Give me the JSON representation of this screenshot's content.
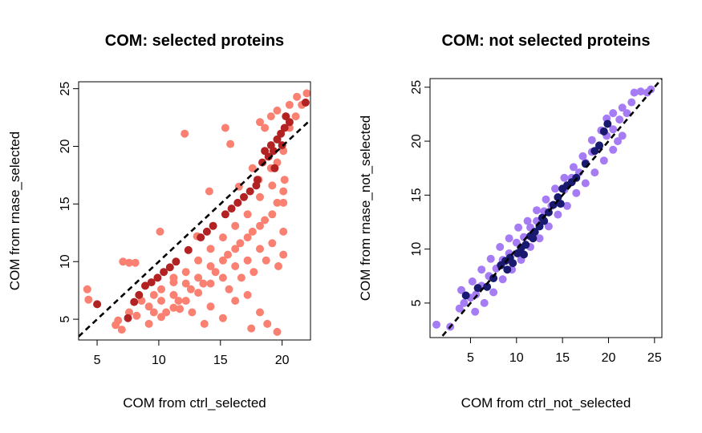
{
  "chart_data": [
    {
      "type": "scatter",
      "title": "COM: selected proteins",
      "xlabel": "COM from ctrl_selected",
      "ylabel": "COM from rnase_selected",
      "xlim": [
        3.5,
        22.3
      ],
      "ylim": [
        3.2,
        25.6
      ],
      "xticks": [
        5,
        10,
        15,
        20
      ],
      "yticks": [
        5,
        10,
        15,
        20,
        25
      ],
      "grid": false,
      "legend": "none",
      "reference_line": {
        "slope": 1,
        "intercept": 0,
        "style": "dashed",
        "color": "#000000"
      },
      "series": [
        {
          "color": "#FA8072",
          "points": [
            [
              4.2,
              7.6
            ],
            [
              4.3,
              6.7
            ],
            [
              7.1,
              10.0
            ],
            [
              7.6,
              9.9
            ],
            [
              8.1,
              9.9
            ],
            [
              10.1,
              12.6
            ],
            [
              12.1,
              21.1
            ],
            [
              13.1,
              12.2
            ],
            [
              14.1,
              16.1
            ],
            [
              15.4,
              21.6
            ],
            [
              18.2,
              22.1
            ],
            [
              19.6,
              20.6
            ],
            [
              16.5,
              16.5
            ],
            [
              15.8,
              20.2
            ],
            [
              11.2,
              8.2
            ],
            [
              6.5,
              4.5
            ],
            [
              7.0,
              4.1
            ],
            [
              8.2,
              5.3
            ],
            [
              9.2,
              4.6
            ],
            [
              10.2,
              5.2
            ],
            [
              11.2,
              6.0
            ],
            [
              12.2,
              6.6
            ],
            [
              13.2,
              7.3
            ],
            [
              14.2,
              8.1
            ],
            [
              15.2,
              8.6
            ],
            [
              16.2,
              9.6
            ],
            [
              17.2,
              10.1
            ],
            [
              18.2,
              11.1
            ],
            [
              19.2,
              11.6
            ],
            [
              20.1,
              12.6
            ],
            [
              9.2,
              6.1
            ],
            [
              10.2,
              6.6
            ],
            [
              11.2,
              7.1
            ],
            [
              12.2,
              8.1
            ],
            [
              13.2,
              8.6
            ],
            [
              14.2,
              9.6
            ],
            [
              15.2,
              10.1
            ],
            [
              16.2,
              11.1
            ],
            [
              17.2,
              12.1
            ],
            [
              18.2,
              13.1
            ],
            [
              19.2,
              14.1
            ],
            [
              20.1,
              15.1
            ],
            [
              16.2,
              6.6
            ],
            [
              17.2,
              7.1
            ],
            [
              18.2,
              5.6
            ],
            [
              18.8,
              4.6
            ],
            [
              17.5,
              4.2
            ],
            [
              19.6,
              3.9
            ],
            [
              15.2,
              5.1
            ],
            [
              14.2,
              6.1
            ],
            [
              12.7,
              5.6
            ],
            [
              11.7,
              5.9
            ],
            [
              13.7,
              4.6
            ],
            [
              15.7,
              7.6
            ],
            [
              16.7,
              8.6
            ],
            [
              17.7,
              9.1
            ],
            [
              18.7,
              10.1
            ],
            [
              19.7,
              9.6
            ],
            [
              20.1,
              10.6
            ],
            [
              18.2,
              15.6
            ],
            [
              19.2,
              16.6
            ],
            [
              20.2,
              17.1
            ],
            [
              17.2,
              14.1
            ],
            [
              16.2,
              13.1
            ],
            [
              15.2,
              12.1
            ],
            [
              14.2,
              11.1
            ],
            [
              13.2,
              10.1
            ],
            [
              12.2,
              9.1
            ],
            [
              11.2,
              8.6
            ],
            [
              10.2,
              7.6
            ],
            [
              9.6,
              7.1
            ],
            [
              8.6,
              6.6
            ],
            [
              7.6,
              5.6
            ],
            [
              6.7,
              4.9
            ],
            [
              19.6,
              18.6
            ],
            [
              20.1,
              19.6
            ],
            [
              20.6,
              21.6
            ],
            [
              21.1,
              22.6
            ],
            [
              21.6,
              23.6
            ],
            [
              22.0,
              24.6
            ],
            [
              21.2,
              24.3
            ],
            [
              20.6,
              23.6
            ],
            [
              19.6,
              23.1
            ],
            [
              19.1,
              22.6
            ],
            [
              18.6,
              21.6
            ],
            [
              17.6,
              18.1
            ],
            [
              18.1,
              17.1
            ],
            [
              19.1,
              18.1
            ],
            [
              20.1,
              16.1
            ],
            [
              19.6,
              15.1
            ],
            [
              18.6,
              13.6
            ],
            [
              17.6,
              12.6
            ],
            [
              16.6,
              11.6
            ],
            [
              15.6,
              10.6
            ],
            [
              14.6,
              9.1
            ],
            [
              13.6,
              8.1
            ],
            [
              12.6,
              7.6
            ],
            [
              11.6,
              6.6
            ],
            [
              10.6,
              5.6
            ],
            [
              9.6,
              5.6
            ]
          ]
        },
        {
          "color": "#B22222",
          "points": [
            [
              5.0,
              6.3
            ],
            [
              7.5,
              5.1
            ],
            [
              8.0,
              6.5
            ],
            [
              8.4,
              7.1
            ],
            [
              8.9,
              7.9
            ],
            [
              9.4,
              8.2
            ],
            [
              9.9,
              8.6
            ],
            [
              10.4,
              9.1
            ],
            [
              10.9,
              9.5
            ],
            [
              11.4,
              10.0
            ],
            [
              12.4,
              11.0
            ],
            [
              13.4,
              12.1
            ],
            [
              14.4,
              13.1
            ],
            [
              15.4,
              14.1
            ],
            [
              16.4,
              15.1
            ],
            [
              17.4,
              16.1
            ],
            [
              18.0,
              17.1
            ],
            [
              18.4,
              18.6
            ],
            [
              18.9,
              19.1
            ],
            [
              19.3,
              19.6
            ],
            [
              19.6,
              20.6
            ],
            [
              19.9,
              21.1
            ],
            [
              20.2,
              21.6
            ],
            [
              20.6,
              22.1
            ],
            [
              19.1,
              20.1
            ],
            [
              18.6,
              19.6
            ],
            [
              19.4,
              18.1
            ],
            [
              20.0,
              20.1
            ],
            [
              20.3,
              22.6
            ],
            [
              21.9,
              23.8
            ],
            [
              15.9,
              14.6
            ],
            [
              16.9,
              15.6
            ],
            [
              17.9,
              16.6
            ],
            [
              13.9,
              12.6
            ]
          ]
        }
      ]
    },
    {
      "type": "scatter",
      "title": "COM: not selected proteins",
      "xlabel": "COM from ctrl_not_selected",
      "ylabel": "COM from rnase_not_selected",
      "xlim": [
        0.6,
        25.8
      ],
      "ylim": [
        1.8,
        25.8
      ],
      "xticks": [
        5,
        10,
        15,
        20,
        25
      ],
      "yticks": [
        5,
        10,
        15,
        20,
        25
      ],
      "grid": false,
      "legend": "none",
      "reference_line": {
        "slope": 1,
        "intercept": 0,
        "style": "dashed",
        "color": "#000000"
      },
      "series": [
        {
          "color": "#A67CF5",
          "points": [
            [
              1.3,
              3.0
            ],
            [
              2.8,
              2.8
            ],
            [
              3.8,
              4.5
            ],
            [
              4.3,
              5.0
            ],
            [
              5.0,
              5.5
            ],
            [
              5.6,
              5.8
            ],
            [
              6.2,
              6.6
            ],
            [
              7.0,
              7.5
            ],
            [
              7.8,
              8.2
            ],
            [
              8.5,
              9.0
            ],
            [
              9.2,
              9.6
            ],
            [
              10.0,
              10.6
            ],
            [
              10.8,
              11.1
            ],
            [
              11.5,
              12.0
            ],
            [
              12.2,
              12.6
            ],
            [
              13.0,
              13.5
            ],
            [
              13.8,
              14.0
            ],
            [
              14.5,
              14.8
            ],
            [
              15.2,
              15.5
            ],
            [
              16.0,
              16.6
            ],
            [
              16.8,
              17.1
            ],
            [
              17.5,
              18.0
            ],
            [
              18.2,
              19.0
            ],
            [
              19.0,
              19.5
            ],
            [
              19.8,
              20.5
            ],
            [
              20.5,
              21.1
            ],
            [
              21.2,
              22.0
            ],
            [
              22.0,
              22.6
            ],
            [
              22.8,
              24.5
            ],
            [
              23.5,
              24.6
            ],
            [
              24.2,
              24.5
            ],
            [
              24.6,
              24.8
            ],
            [
              5.5,
              4.2
            ],
            [
              6.5,
              5.0
            ],
            [
              7.5,
              6.0
            ],
            [
              8.5,
              7.2
            ],
            [
              9.5,
              8.1
            ],
            [
              10.5,
              9.0
            ],
            [
              11.5,
              10.2
            ],
            [
              12.5,
              11.0
            ],
            [
              13.5,
              12.1
            ],
            [
              14.5,
              13.2
            ],
            [
              15.5,
              14.0
            ],
            [
              16.5,
              15.2
            ],
            [
              17.5,
              16.1
            ],
            [
              18.5,
              17.1
            ],
            [
              19.5,
              18.2
            ],
            [
              20.5,
              19.2
            ],
            [
              21.0,
              20.0
            ],
            [
              21.5,
              20.5
            ],
            [
              4.0,
              6.2
            ],
            [
              5.2,
              7.0
            ],
            [
              6.2,
              8.1
            ],
            [
              7.2,
              9.1
            ],
            [
              8.2,
              10.2
            ],
            [
              9.2,
              11.0
            ],
            [
              10.2,
              12.0
            ],
            [
              11.2,
              12.6
            ],
            [
              12.2,
              13.6
            ],
            [
              13.2,
              14.6
            ],
            [
              14.2,
              15.6
            ],
            [
              15.2,
              16.6
            ],
            [
              16.2,
              17.6
            ],
            [
              17.2,
              18.6
            ],
            [
              18.2,
              20.1
            ],
            [
              19.2,
              21.0
            ],
            [
              19.8,
              22.1
            ],
            [
              20.5,
              22.6
            ],
            [
              21.5,
              23.1
            ],
            [
              22.5,
              23.6
            ]
          ]
        },
        {
          "color": "#191970",
          "points": [
            [
              4.5,
              5.7
            ],
            [
              5.8,
              6.4
            ],
            [
              6.8,
              6.5
            ],
            [
              7.5,
              7.3
            ],
            [
              8.3,
              8.5
            ],
            [
              8.8,
              8.9
            ],
            [
              9.3,
              9.2
            ],
            [
              9.6,
              8.7
            ],
            [
              10.1,
              9.6
            ],
            [
              10.5,
              10.1
            ],
            [
              11.0,
              10.4
            ],
            [
              11.5,
              11.2
            ],
            [
              12.0,
              11.6
            ],
            [
              12.5,
              12.1
            ],
            [
              13.0,
              12.6
            ],
            [
              13.5,
              13.4
            ],
            [
              14.0,
              14.1
            ],
            [
              14.5,
              14.8
            ],
            [
              15.0,
              15.6
            ],
            [
              15.5,
              15.9
            ],
            [
              16.5,
              16.6
            ],
            [
              17.5,
              17.9
            ],
            [
              18.5,
              19.1
            ],
            [
              19.5,
              20.9
            ],
            [
              19.0,
              19.6
            ],
            [
              19.9,
              21.6
            ],
            [
              10.8,
              9.5
            ],
            [
              12.8,
              12.9
            ],
            [
              16.0,
              16.2
            ],
            [
              9.0,
              8.1
            ],
            [
              11.8,
              11.0
            ],
            [
              14.8,
              14.2
            ]
          ]
        }
      ]
    }
  ]
}
